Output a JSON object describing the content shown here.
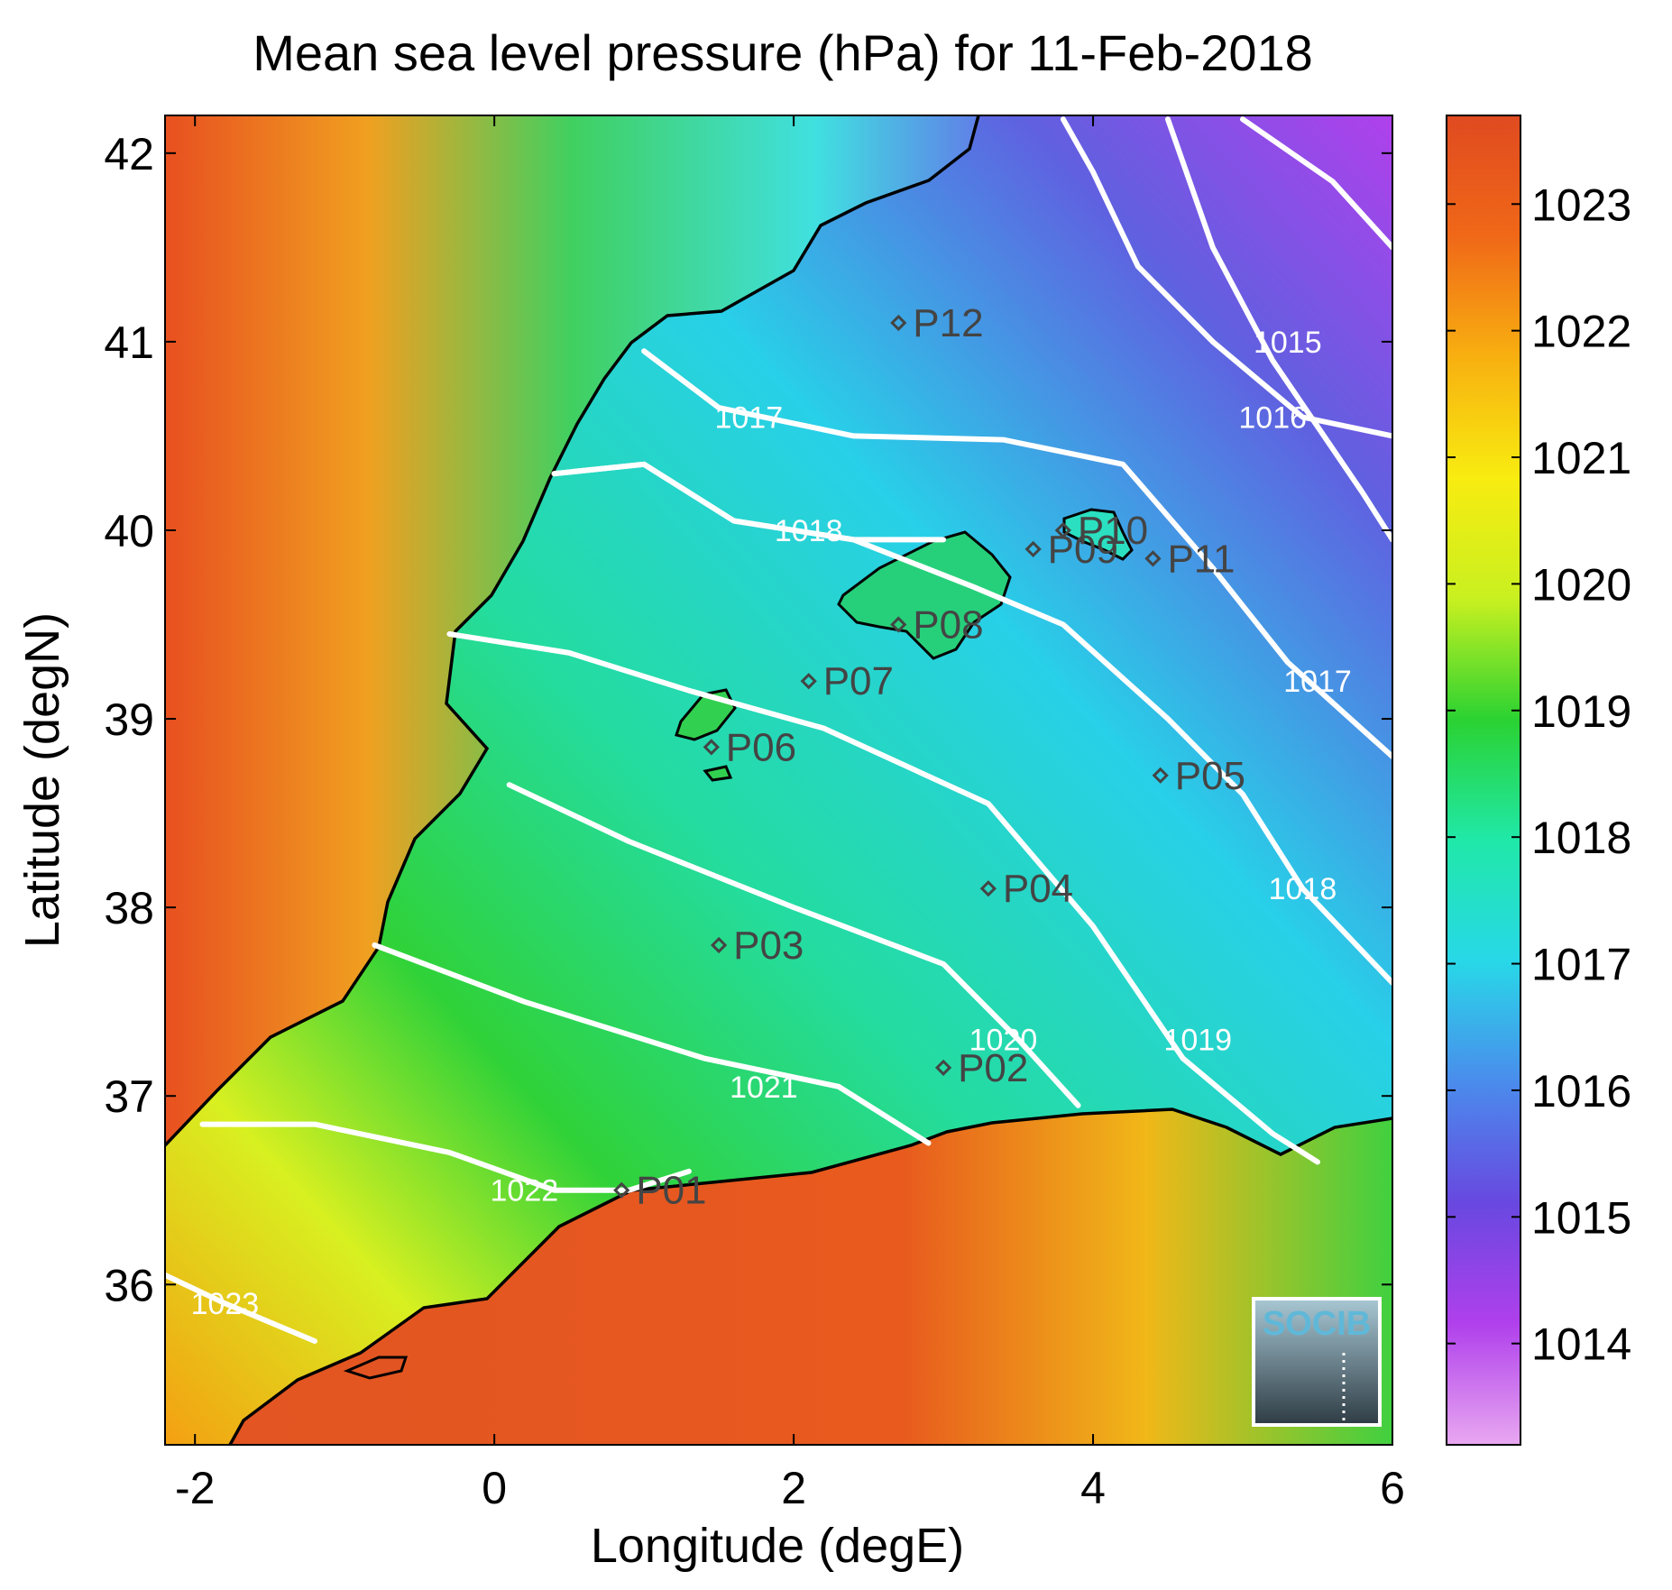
{
  "title": "Mean sea level pressure (hPa) for 11-Feb-2018",
  "axes": {
    "xlabel": "Longitude (degE)",
    "ylabel": "Latitude (degN)",
    "xlim": [
      -2.2,
      6.0
    ],
    "ylim": [
      35.15,
      42.2
    ],
    "xticks": [
      "-2",
      "0",
      "2",
      "4",
      "6"
    ],
    "xtick_values": [
      -2,
      0,
      2,
      4,
      6
    ],
    "yticks": [
      "36",
      "37",
      "38",
      "39",
      "40",
      "41",
      "42"
    ],
    "ytick_values": [
      36,
      37,
      38,
      39,
      40,
      41,
      42
    ]
  },
  "colorbar": {
    "range": [
      1013.2,
      1023.7
    ],
    "ticks": [
      "1014",
      "1015",
      "1016",
      "1017",
      "1018",
      "1019",
      "1020",
      "1021",
      "1022",
      "1023"
    ],
    "tick_values": [
      1014,
      1015,
      1016,
      1017,
      1018,
      1019,
      1020,
      1021,
      1022,
      1023
    ],
    "colors": [
      "#e8a8f0",
      "#b040ec",
      "#6848e0",
      "#4a8cec",
      "#28d8e8",
      "#20e8a8",
      "#2ad232",
      "#c8f020",
      "#f8ec10",
      "#f8b010",
      "#f06818",
      "#e04a20"
    ]
  },
  "contours": [
    {
      "label": "1015",
      "points": [
        [
          5.0,
          42.18
        ],
        [
          5.6,
          41.85
        ],
        [
          6.0,
          41.5
        ]
      ],
      "label_at": [
        5.3,
        41.0
      ]
    },
    {
      "label": "1016",
      "points": [
        [
          4.5,
          42.18
        ],
        [
          4.8,
          41.5
        ],
        [
          5.2,
          40.9
        ],
        [
          5.8,
          40.2
        ],
        [
          6.0,
          39.95
        ]
      ],
      "label_at": [
        5.2,
        40.6
      ]
    },
    {
      "label": "1017",
      "points": [
        [
          1.0,
          40.95
        ],
        [
          1.5,
          40.65
        ],
        [
          2.4,
          40.5
        ],
        [
          3.4,
          40.48
        ],
        [
          4.2,
          40.35
        ],
        [
          4.8,
          39.8
        ],
        [
          5.3,
          39.3
        ],
        [
          6.0,
          38.8
        ]
      ],
      "label_at": [
        1.7,
        40.6
      ]
    },
    {
      "label": "1017",
      "points": [
        [
          3.8,
          42.18
        ],
        [
          4.0,
          41.9
        ],
        [
          4.3,
          41.4
        ],
        [
          4.8,
          41.0
        ],
        [
          5.4,
          40.6
        ],
        [
          6.0,
          40.5
        ]
      ],
      "label_at": [
        5.5,
        39.2
      ]
    },
    {
      "label": "1018",
      "points": [
        [
          0.4,
          40.3
        ],
        [
          1.0,
          40.35
        ],
        [
          1.6,
          40.05
        ],
        [
          2.4,
          39.95
        ],
        [
          3.2,
          39.7
        ],
        [
          3.8,
          39.5
        ],
        [
          4.5,
          39.0
        ],
        [
          5.0,
          38.6
        ],
        [
          5.4,
          38.1
        ],
        [
          6.0,
          37.6
        ]
      ],
      "label_at": [
        5.4,
        38.1
      ]
    },
    {
      "label": "1018",
      "points": [
        [
          0.4,
          40.3
        ],
        [
          1.0,
          40.35
        ],
        [
          1.6,
          40.05
        ],
        [
          2.4,
          39.95
        ],
        [
          3.0,
          39.95
        ]
      ],
      "label_at": [
        2.1,
        40.0
      ]
    },
    {
      "label": "1019",
      "points": [
        [
          -0.3,
          39.45
        ],
        [
          0.5,
          39.35
        ],
        [
          1.3,
          39.15
        ],
        [
          2.2,
          38.95
        ],
        [
          3.3,
          38.55
        ],
        [
          4.0,
          37.9
        ],
        [
          4.6,
          37.2
        ],
        [
          5.2,
          36.8
        ],
        [
          5.5,
          36.65
        ]
      ],
      "label_at": [
        4.7,
        37.3
      ]
    },
    {
      "label": "1020",
      "points": [
        [
          0.1,
          38.65
        ],
        [
          0.9,
          38.35
        ],
        [
          2.0,
          38.0
        ],
        [
          3.0,
          37.7
        ],
        [
          3.5,
          37.3
        ],
        [
          3.9,
          36.95
        ]
      ],
      "label_at": [
        3.4,
        37.3
      ]
    },
    {
      "label": "1021",
      "points": [
        [
          -0.8,
          37.8
        ],
        [
          0.2,
          37.5
        ],
        [
          1.4,
          37.2
        ],
        [
          2.3,
          37.05
        ],
        [
          2.9,
          36.75
        ]
      ],
      "label_at": [
        1.8,
        37.05
      ]
    },
    {
      "label": "1022",
      "points": [
        [
          -1.95,
          36.85
        ],
        [
          -1.2,
          36.85
        ],
        [
          -0.3,
          36.7
        ],
        [
          0.4,
          36.5
        ],
        [
          0.9,
          36.5
        ],
        [
          1.3,
          36.6
        ]
      ],
      "label_at": [
        0.2,
        36.5
      ]
    },
    {
      "label": "1023",
      "points": [
        [
          -2.2,
          36.05
        ],
        [
          -1.8,
          35.9
        ],
        [
          -1.2,
          35.7
        ]
      ],
      "label_at": [
        -1.8,
        35.9
      ]
    }
  ],
  "stations": [
    {
      "id": "P01",
      "lon": 0.85,
      "lat": 36.5
    },
    {
      "id": "P02",
      "lon": 3.0,
      "lat": 37.15
    },
    {
      "id": "P03",
      "lon": 1.5,
      "lat": 37.8
    },
    {
      "id": "P04",
      "lon": 3.3,
      "lat": 38.1
    },
    {
      "id": "P05",
      "lon": 4.45,
      "lat": 38.7
    },
    {
      "id": "P06",
      "lon": 1.45,
      "lat": 38.85
    },
    {
      "id": "P07",
      "lon": 2.1,
      "lat": 39.2
    },
    {
      "id": "P08",
      "lon": 2.7,
      "lat": 39.5
    },
    {
      "id": "P09",
      "lon": 3.6,
      "lat": 39.9
    },
    {
      "id": "P10",
      "lon": 3.8,
      "lat": 40.0
    },
    {
      "id": "P11",
      "lon": 4.4,
      "lat": 39.85
    },
    {
      "id": "P12",
      "lon": 2.7,
      "lat": 41.1
    }
  ],
  "logo": {
    "text": "SOCIB"
  }
}
